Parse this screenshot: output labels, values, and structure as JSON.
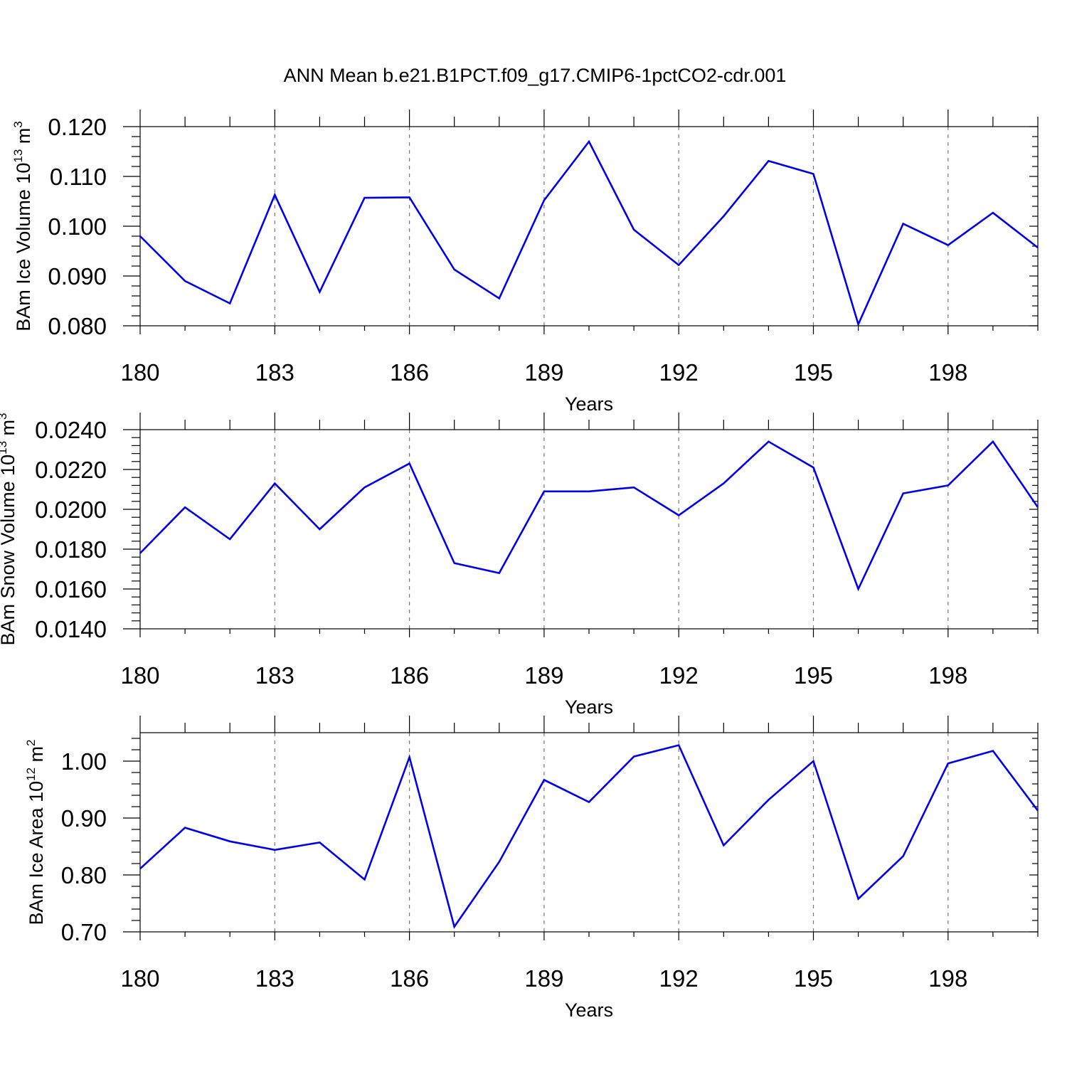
{
  "title": "ANN Mean b.e21.B1PCT.f09_g17.CMIP6-1pctCO2-cdr.001",
  "chart_data": [
    {
      "type": "line",
      "ylabel_main": "BAm Ice Volume 10",
      "ylabel_exp": "13",
      "ylabel_unit": " m",
      "ylabel_unit_exp": "3",
      "xlabel": "Years",
      "xlim": [
        180,
        200
      ],
      "ylim": [
        0.08,
        0.12
      ],
      "ytick_values": [
        0.08,
        0.09,
        0.1,
        0.11,
        0.12
      ],
      "ytick_labels": [
        "0.080",
        "0.090",
        "0.100",
        "0.110",
        "0.120"
      ],
      "xtick_values": [
        180,
        183,
        186,
        189,
        192,
        195,
        198
      ],
      "xtick_labels": [
        "180",
        "183",
        "186",
        "189",
        "192",
        "195",
        "198"
      ],
      "grid": "dashed vertical at major x ticks",
      "color": "#0000ee",
      "x": [
        180,
        181,
        182,
        183,
        184,
        185,
        186,
        187,
        188,
        189,
        190,
        191,
        192,
        193,
        194,
        195,
        196,
        197,
        198,
        199,
        200
      ],
      "values": [
        0.098,
        0.089,
        0.0845,
        0.1063,
        0.0868,
        0.1057,
        0.1058,
        0.0913,
        0.0855,
        0.1052,
        0.117,
        0.0993,
        0.0922,
        0.102,
        0.1131,
        0.1105,
        0.0803,
        0.1005,
        0.0962,
        0.1027,
        0.0957
      ]
    },
    {
      "type": "line",
      "ylabel_main": "BAm Snow Volume 10",
      "ylabel_exp": "13",
      "ylabel_unit": " m",
      "ylabel_unit_exp": "3",
      "xlabel": "Years",
      "xlim": [
        180,
        200
      ],
      "ylim": [
        0.014,
        0.024
      ],
      "ytick_values": [
        0.014,
        0.016,
        0.018,
        0.02,
        0.022,
        0.024
      ],
      "ytick_labels": [
        "0.0140",
        "0.0160",
        "0.0180",
        "0.0200",
        "0.0220",
        "0.0240"
      ],
      "xtick_values": [
        180,
        183,
        186,
        189,
        192,
        195,
        198
      ],
      "xtick_labels": [
        "180",
        "183",
        "186",
        "189",
        "192",
        "195",
        "198"
      ],
      "grid": "dashed vertical at major x ticks",
      "color": "#0000ee",
      "x": [
        180,
        181,
        182,
        183,
        184,
        185,
        186,
        187,
        188,
        189,
        190,
        191,
        192,
        193,
        194,
        195,
        196,
        197,
        198,
        199,
        200
      ],
      "values": [
        0.0178,
        0.0201,
        0.0185,
        0.0213,
        0.019,
        0.0211,
        0.0223,
        0.0173,
        0.0168,
        0.0209,
        0.0209,
        0.0211,
        0.0197,
        0.0213,
        0.0234,
        0.0221,
        0.016,
        0.0208,
        0.0212,
        0.0234,
        0.0201
      ]
    },
    {
      "type": "line",
      "ylabel_main": "BAm Ice Area 10",
      "ylabel_exp": "12",
      "ylabel_unit": " m",
      "ylabel_unit_exp": "2",
      "xlabel": "Years",
      "xlim": [
        180,
        200
      ],
      "ylim": [
        0.7,
        1.05
      ],
      "ytick_values": [
        0.7,
        0.8,
        0.9,
        1.0
      ],
      "ytick_labels": [
        "0.70",
        "0.80",
        "0.90",
        "1.00"
      ],
      "xtick_values": [
        180,
        183,
        186,
        189,
        192,
        195,
        198
      ],
      "xtick_labels": [
        "180",
        "183",
        "186",
        "189",
        "192",
        "195",
        "198"
      ],
      "grid": "dashed vertical at major x ticks",
      "color": "#0000ee",
      "x": [
        180,
        181,
        182,
        183,
        184,
        185,
        186,
        187,
        188,
        189,
        190,
        191,
        192,
        193,
        194,
        195,
        196,
        197,
        198,
        199,
        200
      ],
      "values": [
        0.811,
        0.883,
        0.859,
        0.844,
        0.857,
        0.792,
        1.007,
        0.709,
        0.823,
        0.967,
        0.928,
        1.008,
        1.028,
        0.852,
        0.932,
        1.0,
        0.758,
        0.833,
        0.996,
        1.018,
        0.913
      ]
    }
  ]
}
